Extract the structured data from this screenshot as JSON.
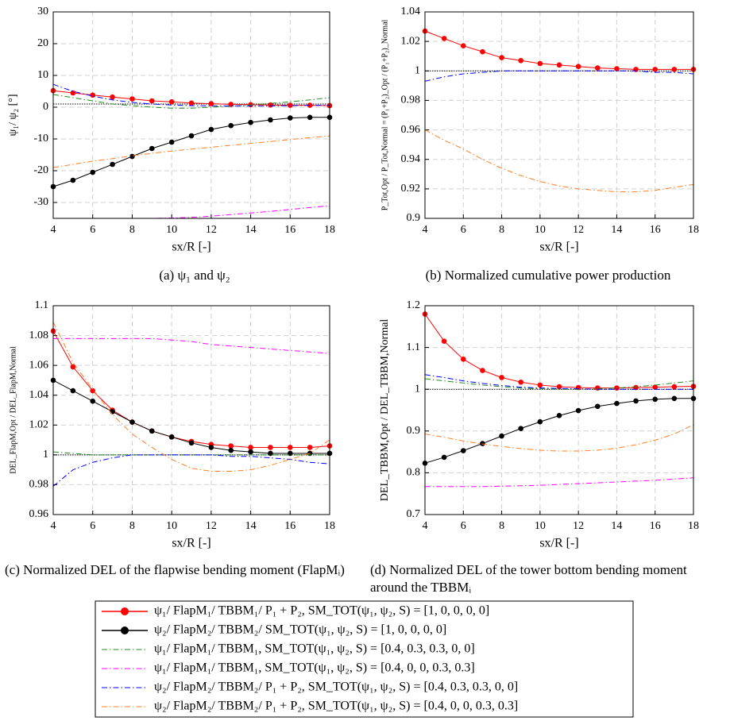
{
  "chart_data": [
    {
      "type": "line",
      "ylabel": "ψ₁/ ψ₂ [°]",
      "xlabel": "sx/R [-]",
      "caption": "(a) ψ₁ and ψ₂",
      "x": [
        4,
        5,
        6,
        7,
        8,
        9,
        10,
        11,
        12,
        13,
        14,
        15,
        16,
        17,
        18
      ],
      "xlim": [
        4,
        18
      ],
      "xticks": [
        4,
        6,
        8,
        10,
        12,
        14,
        16,
        18
      ],
      "ylim": [
        -35,
        30
      ],
      "yticks": [
        -30,
        -20,
        -10,
        0,
        10,
        20,
        30
      ],
      "grid": true,
      "hline": 1,
      "series": [
        {
          "color": "#ff0000",
          "linestyle": "solid",
          "marker": "circle",
          "values": [
            5.2,
            4.5,
            3.8,
            3.2,
            2.6,
            2.0,
            1.7,
            1.3,
            1.1,
            0.9,
            0.8,
            0.7,
            0.6,
            0.6,
            0.5
          ]
        },
        {
          "color": "#000000",
          "linestyle": "solid",
          "marker": "circle",
          "values": [
            -25,
            -23,
            -20.5,
            -18,
            -15.5,
            -13,
            -11,
            -9,
            -7,
            -5.8,
            -4.8,
            -4,
            -3.4,
            -3.2,
            -3.2
          ]
        },
        {
          "color": "#228b22",
          "linestyle": "dash-dot",
          "values": [
            4,
            3,
            2,
            1,
            0.5,
            0,
            -0.3,
            -0.3,
            0,
            0.3,
            0.7,
            1.2,
            1.7,
            2.3,
            3
          ]
        },
        {
          "color": "#ff00ff",
          "linestyle": "dash-dot",
          "values": [
            -35,
            -35,
            -35,
            -35,
            -35,
            -35,
            -34.9,
            -34.7,
            -34.3,
            -33.8,
            -33.3,
            -32.8,
            -32.2,
            -31.6,
            -31
          ]
        },
        {
          "color": "#0000ff",
          "linestyle": "dash-dot",
          "values": [
            7.2,
            5,
            3.5,
            2.3,
            1.5,
            1,
            0.7,
            0.5,
            0.4,
            0.4,
            0.4,
            0.4,
            0.5,
            0.6,
            0.6
          ]
        },
        {
          "color": "#ff7f27",
          "linestyle": "dash-dot",
          "values": [
            -19,
            -18,
            -17,
            -16.2,
            -15.3,
            -14.5,
            -13.8,
            -13.2,
            -12.6,
            -12,
            -11.4,
            -10.8,
            -10.2,
            -9.6,
            -9
          ]
        }
      ]
    },
    {
      "type": "line",
      "ylabel": "P_Tot,Opt / P_Tot,Normal = (P₁+P₂)_Opt / (P₁+P₂)_Normal",
      "xlabel": "sx/R [-]",
      "caption": "(b) Normalized cumulative power production",
      "x": [
        4,
        5,
        6,
        7,
        8,
        9,
        10,
        11,
        12,
        13,
        14,
        15,
        16,
        17,
        18
      ],
      "xlim": [
        4,
        18
      ],
      "xticks": [
        4,
        6,
        8,
        10,
        12,
        14,
        16,
        18
      ],
      "ylim": [
        0.9,
        1.04
      ],
      "yticks": [
        0.9,
        0.92,
        0.94,
        0.96,
        0.98,
        1,
        1.02,
        1.04
      ],
      "grid": true,
      "hline": 1,
      "series": [
        {
          "color": "#ff0000",
          "linestyle": "solid",
          "marker": "circle",
          "values": [
            1.027,
            1.022,
            1.017,
            1.013,
            1.009,
            1.007,
            1.005,
            1.004,
            1.003,
            1.002,
            1.0015,
            1.001,
            1.001,
            1.001,
            1.001
          ]
        },
        {
          "color": "#0000ff",
          "linestyle": "dash-dot",
          "values": [
            0.993,
            0.996,
            0.998,
            0.999,
            1.0,
            1.0,
            1.0,
            1.0,
            1.0,
            1.0,
            1.0,
            1.0,
            0.999,
            0.999,
            0.998
          ]
        },
        {
          "color": "#ff7f27",
          "linestyle": "dash-dot",
          "values": [
            0.96,
            0.953,
            0.947,
            0.94,
            0.934,
            0.929,
            0.925,
            0.922,
            0.92,
            0.919,
            0.918,
            0.918,
            0.919,
            0.921,
            0.923
          ]
        }
      ]
    },
    {
      "type": "line",
      "ylabel": "DEL_FlapM,Opt / DEL_FlapM,Normal",
      "xlabel": "sx/R [-]",
      "caption": "(c) Normalized DEL of the flapwise bending moment (FlapMᵢ)",
      "x": [
        4,
        5,
        6,
        7,
        8,
        9,
        10,
        11,
        12,
        13,
        14,
        15,
        16,
        17,
        18
      ],
      "xlim": [
        4,
        18
      ],
      "xticks": [
        4,
        6,
        8,
        10,
        12,
        14,
        16,
        18
      ],
      "ylim": [
        0.96,
        1.1
      ],
      "yticks": [
        0.96,
        0.98,
        1,
        1.02,
        1.04,
        1.06,
        1.08,
        1.1
      ],
      "grid": true,
      "hline": 1,
      "series": [
        {
          "color": "#ff0000",
          "linestyle": "solid",
          "marker": "circle",
          "values": [
            1.083,
            1.059,
            1.043,
            1.03,
            1.022,
            1.016,
            1.012,
            1.009,
            1.007,
            1.006,
            1.005,
            1.005,
            1.005,
            1.005,
            1.006
          ]
        },
        {
          "color": "#000000",
          "linestyle": "solid",
          "marker": "circle",
          "values": [
            1.05,
            1.043,
            1.036,
            1.029,
            1.022,
            1.016,
            1.012,
            1.008,
            1.005,
            1.003,
            1.002,
            1.001,
            1.001,
            1.001,
            1.001
          ]
        },
        {
          "color": "#228b22",
          "linestyle": "dash-dot",
          "values": [
            1.002,
            1.001,
            1.0,
            1.0,
            1.0,
            1.0,
            1.0,
            1.0,
            1.0,
            1.0,
            1.0,
            1.0,
            1.0,
            1.0,
            1.0
          ]
        },
        {
          "color": "#ff00ff",
          "linestyle": "dash-dot",
          "values": [
            1.078,
            1.078,
            1.078,
            1.078,
            1.078,
            1.078,
            1.077,
            1.076,
            1.074,
            1.073,
            1.072,
            1.071,
            1.07,
            1.069,
            1.068
          ]
        },
        {
          "color": "#0000ff",
          "linestyle": "dash-dot",
          "values": [
            0.979,
            0.99,
            0.995,
            0.998,
            1.0,
            1.0,
            1.0,
            1.0,
            1.0,
            0.999,
            0.999,
            0.998,
            0.997,
            0.995,
            0.994
          ]
        },
        {
          "color": "#ff7f27",
          "linestyle": "dash-dot",
          "values": [
            1.089,
            1.062,
            1.044,
            1.027,
            1.014,
            1.005,
            0.997,
            0.991,
            0.989,
            0.989,
            0.99,
            0.993,
            0.997,
            1.001,
            1.01
          ]
        }
      ]
    },
    {
      "type": "line",
      "ylabel": "DEL_TBBM,Opt / DEL_TBBM,Normal",
      "xlabel": "sx/R [-]",
      "caption": "(d) Normalized DEL of the tower bottom bending moment around the TBBMᵢ",
      "x": [
        4,
        5,
        6,
        7,
        8,
        9,
        10,
        11,
        12,
        13,
        14,
        15,
        16,
        17,
        18
      ],
      "xlim": [
        4,
        18
      ],
      "xticks": [
        4,
        6,
        8,
        10,
        12,
        14,
        16,
        18
      ],
      "ylim": [
        0.7,
        1.2
      ],
      "yticks": [
        0.7,
        0.8,
        0.9,
        1,
        1.1,
        1.2
      ],
      "grid": true,
      "hline": 1,
      "series": [
        {
          "color": "#ff0000",
          "linestyle": "solid",
          "marker": "circle",
          "values": [
            1.18,
            1.115,
            1.072,
            1.045,
            1.028,
            1.017,
            1.01,
            1.006,
            1.004,
            1.003,
            1.003,
            1.004,
            1.005,
            1.006,
            1.007
          ]
        },
        {
          "color": "#000000",
          "linestyle": "solid",
          "marker": "circle",
          "values": [
            0.823,
            0.837,
            0.853,
            0.87,
            0.888,
            0.906,
            0.922,
            0.937,
            0.949,
            0.959,
            0.966,
            0.972,
            0.976,
            0.978,
            0.978
          ]
        },
        {
          "color": "#228b22",
          "linestyle": "dash-dot",
          "values": [
            1.025,
            1.02,
            1.015,
            1.01,
            1.006,
            1.003,
            1.001,
            1.0,
            1.0,
            1.001,
            1.003,
            1.006,
            1.01,
            1.015,
            1.02
          ]
        },
        {
          "color": "#ff00ff",
          "linestyle": "dash-dot",
          "values": [
            0.767,
            0.767,
            0.767,
            0.767,
            0.768,
            0.769,
            0.77,
            0.772,
            0.774,
            0.776,
            0.778,
            0.78,
            0.782,
            0.785,
            0.788
          ]
        },
        {
          "color": "#0000ff",
          "linestyle": "dash-dot",
          "values": [
            1.035,
            1.028,
            1.02,
            1.014,
            1.009,
            1.005,
            1.003,
            1.002,
            1.001,
            1.0,
            1.0,
            1.0,
            1.0,
            1.0,
            1.0
          ]
        },
        {
          "color": "#ff7f27",
          "linestyle": "dash-dot",
          "values": [
            0.893,
            0.885,
            0.876,
            0.869,
            0.863,
            0.858,
            0.854,
            0.852,
            0.852,
            0.854,
            0.859,
            0.867,
            0.878,
            0.893,
            0.915
          ]
        }
      ]
    }
  ],
  "legend": [
    {
      "label": "ψ₁/ FlapM₁/ TBBM₁/ P₁ + P₂, SM_TOT(ψ₁, ψ₂, S) = [1, 0, 0, 0, 0]",
      "color": "#ff0000",
      "linestyle": "solid",
      "marker": "circle"
    },
    {
      "label": "ψ₂/ FlapM₂/ TBBM₂/ SM_TOT(ψ₁, ψ₂, S) = [1, 0, 0, 0, 0]",
      "color": "#000000",
      "linestyle": "solid",
      "marker": "circle"
    },
    {
      "label": "ψ₁/ FlapM₁/ TBBM₁, SM_TOT(ψ₁, ψ₂, S) = [0.4, 0.3, 0.3, 0, 0]",
      "color": "#228b22",
      "linestyle": "dash-dot"
    },
    {
      "label": "ψ₁/ FlapM₁/ TBBM₁, SM_TOT(ψ₁, ψ₂, S) = [0.4, 0, 0, 0.3, 0.3]",
      "color": "#ff00ff",
      "linestyle": "dash-dot"
    },
    {
      "label": "ψ₂/ FlapM₂/ TBBM₂/ P₁ + P₂, SM_TOT(ψ₁, ψ₂, S) = [0.4, 0.3, 0.3, 0, 0]",
      "color": "#0000ff",
      "linestyle": "dash-dot"
    },
    {
      "label": "ψ₂/ FlapM₂/ TBBM₂/ P₁ + P₂, SM_TOT(ψ₁, ψ₂, S) = [0.4, 0, 0, 0.3, 0.3]",
      "color": "#ff7f27",
      "linestyle": "dash-dot"
    }
  ]
}
